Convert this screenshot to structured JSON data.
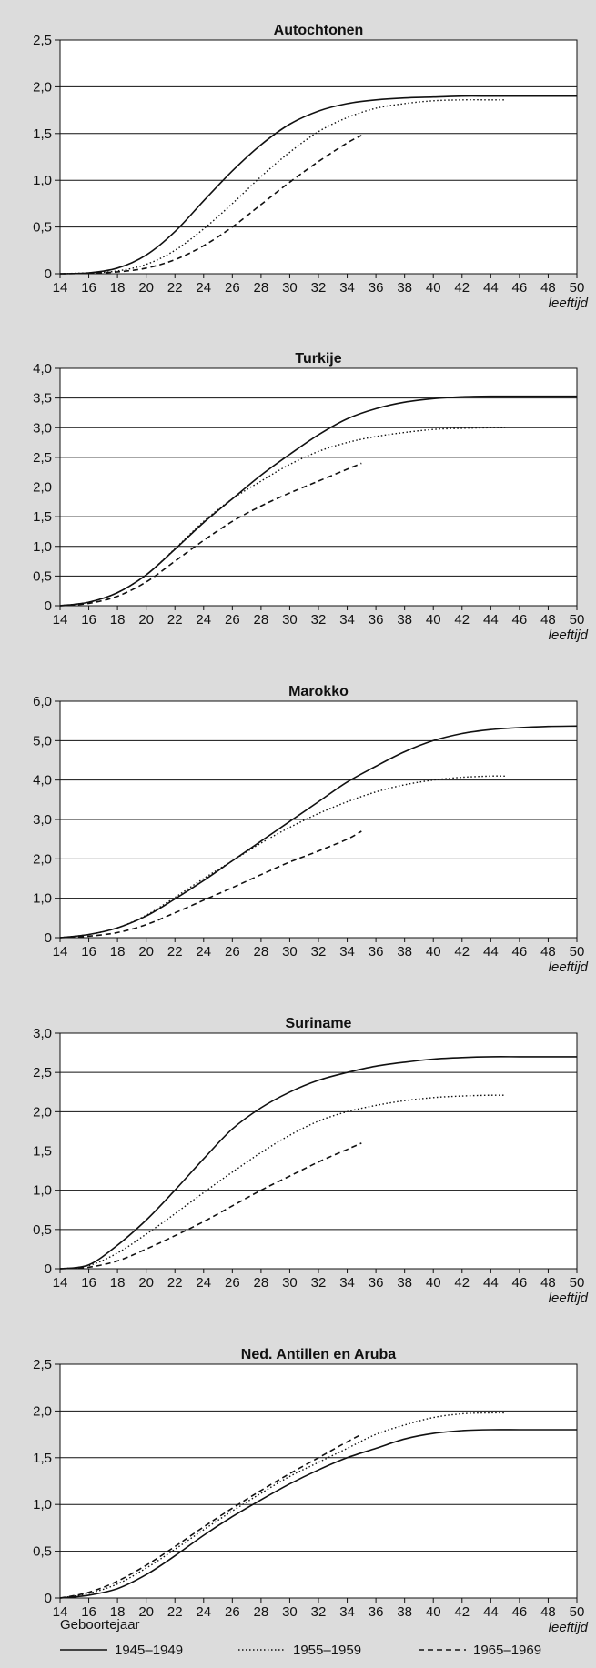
{
  "chart_data": [
    {
      "type": "line",
      "title": "Autochtonen",
      "xlabel": "leeftijd",
      "ylabel": "",
      "xlim": [
        14,
        50
      ],
      "ylim": [
        0,
        2.5
      ],
      "yticks": [
        "0",
        "0,5",
        "1,0",
        "1,5",
        "2,0",
        "2,5"
      ],
      "xticks": [
        "14",
        "16",
        "18",
        "20",
        "22",
        "24",
        "26",
        "28",
        "30",
        "32",
        "34",
        "36",
        "38",
        "40",
        "42",
        "44",
        "46",
        "48",
        "50"
      ],
      "grid": "horizontal",
      "series": [
        {
          "name": "1945–1949",
          "style": "solid",
          "x": [
            14,
            16,
            18,
            20,
            22,
            24,
            26,
            28,
            30,
            32,
            34,
            36,
            38,
            40,
            42,
            44,
            46,
            48,
            50
          ],
          "y": [
            0,
            0.01,
            0.06,
            0.2,
            0.45,
            0.78,
            1.1,
            1.38,
            1.6,
            1.74,
            1.82,
            1.86,
            1.88,
            1.89,
            1.9,
            1.9,
            1.9,
            1.9,
            1.9
          ]
        },
        {
          "name": "1955–1959",
          "style": "dotted",
          "x": [
            14,
            16,
            18,
            20,
            22,
            24,
            26,
            28,
            30,
            32,
            34,
            36,
            38,
            40,
            42,
            44,
            45
          ],
          "y": [
            0,
            0.01,
            0.03,
            0.1,
            0.25,
            0.48,
            0.75,
            1.04,
            1.3,
            1.52,
            1.67,
            1.77,
            1.82,
            1.85,
            1.86,
            1.86,
            1.86
          ]
        },
        {
          "name": "1965–1969",
          "style": "dashed",
          "x": [
            14,
            16,
            18,
            20,
            22,
            24,
            26,
            28,
            30,
            32,
            34,
            35
          ],
          "y": [
            0,
            0.005,
            0.02,
            0.06,
            0.15,
            0.3,
            0.5,
            0.74,
            0.98,
            1.2,
            1.4,
            1.48
          ]
        }
      ]
    },
    {
      "type": "line",
      "title": "Turkije",
      "xlabel": "leeftijd",
      "ylabel": "",
      "xlim": [
        14,
        50
      ],
      "ylim": [
        0,
        4.0
      ],
      "yticks": [
        "0",
        "0,5",
        "1,0",
        "1,5",
        "2,0",
        "2,5",
        "3,0",
        "3,5",
        "4,0"
      ],
      "xticks": [
        "14",
        "16",
        "18",
        "20",
        "22",
        "24",
        "26",
        "28",
        "30",
        "32",
        "34",
        "36",
        "38",
        "40",
        "42",
        "44",
        "46",
        "48",
        "50"
      ],
      "grid": "horizontal",
      "series": [
        {
          "name": "1945–1949",
          "style": "solid",
          "x": [
            14,
            16,
            18,
            20,
            22,
            24,
            26,
            28,
            30,
            32,
            34,
            36,
            38,
            40,
            42,
            44,
            46,
            48,
            50
          ],
          "y": [
            0,
            0.06,
            0.22,
            0.52,
            0.95,
            1.4,
            1.8,
            2.2,
            2.55,
            2.88,
            3.15,
            3.32,
            3.43,
            3.49,
            3.52,
            3.53,
            3.53,
            3.53,
            3.53
          ]
        },
        {
          "name": "1955–1959",
          "style": "dotted",
          "x": [
            14,
            16,
            18,
            20,
            22,
            24,
            26,
            28,
            30,
            32,
            34,
            36,
            38,
            40,
            42,
            44,
            45
          ],
          "y": [
            0,
            0.06,
            0.22,
            0.52,
            0.96,
            1.42,
            1.8,
            2.1,
            2.38,
            2.6,
            2.75,
            2.85,
            2.92,
            2.97,
            2.99,
            3.0,
            3.0
          ]
        },
        {
          "name": "1965–1969",
          "style": "dashed",
          "x": [
            14,
            16,
            18,
            20,
            22,
            24,
            26,
            28,
            30,
            32,
            34,
            35
          ],
          "y": [
            0,
            0.04,
            0.16,
            0.4,
            0.75,
            1.1,
            1.42,
            1.68,
            1.9,
            2.1,
            2.3,
            2.4
          ]
        }
      ]
    },
    {
      "type": "line",
      "title": "Marokko",
      "xlabel": "leeftijd",
      "ylabel": "",
      "xlim": [
        14,
        50
      ],
      "ylim": [
        0,
        6.0
      ],
      "yticks": [
        "0",
        "1,0",
        "2,0",
        "3,0",
        "4,0",
        "5,0",
        "6,0"
      ],
      "xticks": [
        "14",
        "16",
        "18",
        "20",
        "22",
        "24",
        "26",
        "28",
        "30",
        "32",
        "34",
        "36",
        "38",
        "40",
        "42",
        "44",
        "46",
        "48",
        "50"
      ],
      "grid": "horizontal",
      "series": [
        {
          "name": "1945–1949",
          "style": "solid",
          "x": [
            14,
            16,
            18,
            20,
            22,
            24,
            26,
            28,
            30,
            32,
            34,
            36,
            38,
            40,
            42,
            44,
            46,
            48,
            50
          ],
          "y": [
            0,
            0.08,
            0.25,
            0.55,
            0.98,
            1.45,
            1.95,
            2.45,
            2.95,
            3.45,
            3.95,
            4.35,
            4.72,
            5.0,
            5.18,
            5.28,
            5.33,
            5.36,
            5.37
          ]
        },
        {
          "name": "1955–1959",
          "style": "dotted",
          "x": [
            14,
            16,
            18,
            20,
            22,
            24,
            26,
            28,
            30,
            32,
            34,
            36,
            38,
            40,
            42,
            44,
            45
          ],
          "y": [
            0,
            0.08,
            0.25,
            0.57,
            1.02,
            1.5,
            1.95,
            2.4,
            2.8,
            3.15,
            3.45,
            3.7,
            3.88,
            4.0,
            4.07,
            4.1,
            4.1
          ]
        },
        {
          "name": "1965–1969",
          "style": "dashed",
          "x": [
            14,
            16,
            18,
            20,
            22,
            24,
            26,
            28,
            30,
            32,
            34,
            35
          ],
          "y": [
            0,
            0.04,
            0.13,
            0.33,
            0.63,
            0.95,
            1.27,
            1.6,
            1.92,
            2.2,
            2.5,
            2.7
          ]
        }
      ]
    },
    {
      "type": "line",
      "title": "Suriname",
      "xlabel": "leeftijd",
      "ylabel": "",
      "xlim": [
        14,
        50
      ],
      "ylim": [
        0,
        3.0
      ],
      "yticks": [
        "0",
        "0,5",
        "1,0",
        "1,5",
        "2,0",
        "2,5",
        "3,0"
      ],
      "xticks": [
        "14",
        "16",
        "18",
        "20",
        "22",
        "24",
        "26",
        "28",
        "30",
        "32",
        "34",
        "36",
        "38",
        "40",
        "42",
        "44",
        "46",
        "48",
        "50"
      ],
      "grid": "horizontal",
      "series": [
        {
          "name": "1945–1949",
          "style": "solid",
          "x": [
            14,
            16,
            18,
            20,
            22,
            24,
            26,
            28,
            30,
            32,
            34,
            36,
            38,
            40,
            42,
            44,
            46,
            48,
            50
          ],
          "y": [
            0,
            0.05,
            0.3,
            0.62,
            1.0,
            1.4,
            1.78,
            2.05,
            2.25,
            2.4,
            2.5,
            2.58,
            2.63,
            2.67,
            2.69,
            2.7,
            2.7,
            2.7,
            2.7
          ]
        },
        {
          "name": "1955–1959",
          "style": "dotted",
          "x": [
            14,
            16,
            18,
            20,
            22,
            24,
            26,
            28,
            30,
            32,
            34,
            36,
            38,
            40,
            42,
            44,
            45
          ],
          "y": [
            0,
            0.04,
            0.2,
            0.44,
            0.7,
            0.97,
            1.23,
            1.48,
            1.7,
            1.88,
            2.0,
            2.08,
            2.14,
            2.18,
            2.2,
            2.21,
            2.21
          ]
        },
        {
          "name": "1965–1969",
          "style": "dashed",
          "x": [
            14,
            16,
            18,
            20,
            22,
            24,
            26,
            28,
            30,
            32,
            34,
            35
          ],
          "y": [
            0,
            0.02,
            0.1,
            0.25,
            0.42,
            0.6,
            0.8,
            1.0,
            1.18,
            1.36,
            1.52,
            1.6
          ]
        }
      ]
    },
    {
      "type": "line",
      "title": "Ned. Antillen en Aruba",
      "xlabel": "leeftijd",
      "ylabel": "",
      "xlim": [
        14,
        50
      ],
      "ylim": [
        0,
        2.5
      ],
      "yticks": [
        "0",
        "0,5",
        "1,0",
        "1,5",
        "2,0",
        "2,5"
      ],
      "xticks": [
        "14",
        "16",
        "18",
        "20",
        "22",
        "24",
        "26",
        "28",
        "30",
        "32",
        "34",
        "36",
        "38",
        "40",
        "42",
        "44",
        "46",
        "48",
        "50"
      ],
      "grid": "horizontal",
      "series": [
        {
          "name": "1945–1949",
          "style": "solid",
          "x": [
            14,
            16,
            18,
            20,
            22,
            24,
            26,
            28,
            30,
            32,
            34,
            36,
            38,
            40,
            42,
            44,
            46,
            48,
            50
          ],
          "y": [
            0,
            0.03,
            0.1,
            0.25,
            0.45,
            0.67,
            0.87,
            1.05,
            1.22,
            1.37,
            1.5,
            1.6,
            1.7,
            1.76,
            1.79,
            1.8,
            1.8,
            1.8,
            1.8
          ]
        },
        {
          "name": "1955–1959",
          "style": "dotted",
          "x": [
            14,
            16,
            18,
            20,
            22,
            24,
            26,
            28,
            30,
            32,
            34,
            36,
            38,
            40,
            42,
            44,
            45
          ],
          "y": [
            0,
            0.05,
            0.15,
            0.32,
            0.52,
            0.73,
            0.93,
            1.12,
            1.3,
            1.45,
            1.6,
            1.75,
            1.85,
            1.93,
            1.97,
            1.98,
            1.98
          ]
        },
        {
          "name": "1965–1969",
          "style": "dashed",
          "x": [
            14,
            16,
            18,
            20,
            22,
            24,
            26,
            28,
            30,
            32,
            34,
            35
          ],
          "y": [
            0,
            0.06,
            0.18,
            0.35,
            0.55,
            0.76,
            0.96,
            1.15,
            1.33,
            1.5,
            1.67,
            1.75
          ]
        }
      ]
    }
  ],
  "legend": {
    "title": "Geboortejaar",
    "items": [
      {
        "label": "1945–1949",
        "style": "solid"
      },
      {
        "label": "1955–1959",
        "style": "dotted"
      },
      {
        "label": "1965–1969",
        "style": "dashed"
      }
    ]
  },
  "colors": {
    "background": "#dcdcdc",
    "plot_area": "#ffffff",
    "ink": "#111111"
  }
}
